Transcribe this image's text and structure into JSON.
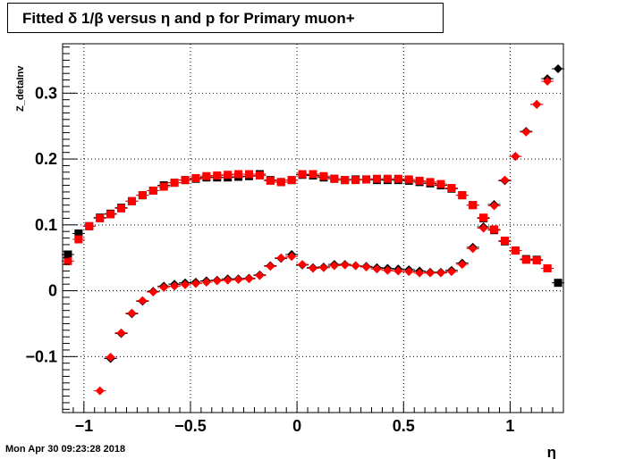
{
  "title": "Fitted δ 1/β versus η and p for Primary muon+",
  "footer_timestamp": "Mon Apr 30 09:23:28 2018",
  "chart_data": {
    "type": "scatter",
    "xlabel": "η",
    "ylabel": "Z_detaInv",
    "xlim": [
      -1.1,
      1.25
    ],
    "ylim": [
      -0.185,
      0.375
    ],
    "x_ticks": [
      -1,
      -0.5,
      0,
      0.5,
      1
    ],
    "x_tick_labels": [
      "−1",
      "−0.5",
      "0",
      "0.5",
      "1"
    ],
    "y_ticks": [
      -0.1,
      0,
      0.1,
      0.2,
      0.3
    ],
    "y_tick_labels": [
      "−0.1",
      "0",
      "0.1",
      "0.2",
      "0.3"
    ],
    "grid": true,
    "series": [
      {
        "color": "#000000",
        "marker": "square",
        "points": [
          [
            -1.075,
            0.055
          ],
          [
            -1.025,
            0.087
          ],
          [
            -0.975,
            0.098
          ],
          [
            -0.925,
            0.111
          ],
          [
            -0.875,
            0.117
          ],
          [
            -0.825,
            0.126
          ],
          [
            -0.775,
            0.136
          ],
          [
            -0.725,
            0.145
          ],
          [
            -0.675,
            0.152
          ],
          [
            -0.625,
            0.16
          ],
          [
            -0.575,
            0.164
          ],
          [
            -0.525,
            0.168
          ],
          [
            -0.475,
            0.17
          ],
          [
            -0.425,
            0.172
          ],
          [
            -0.375,
            0.172
          ],
          [
            -0.325,
            0.172
          ],
          [
            -0.275,
            0.173
          ],
          [
            -0.225,
            0.174
          ],
          [
            -0.175,
            0.177
          ],
          [
            -0.125,
            0.168
          ],
          [
            -0.075,
            0.165
          ],
          [
            -0.025,
            0.168
          ],
          [
            0.025,
            0.176
          ],
          [
            0.075,
            0.175
          ],
          [
            0.125,
            0.172
          ],
          [
            0.175,
            0.17
          ],
          [
            0.225,
            0.168
          ],
          [
            0.275,
            0.169
          ],
          [
            0.325,
            0.169
          ],
          [
            0.375,
            0.168
          ],
          [
            0.425,
            0.168
          ],
          [
            0.475,
            0.168
          ],
          [
            0.525,
            0.167
          ],
          [
            0.575,
            0.165
          ],
          [
            0.625,
            0.163
          ],
          [
            0.675,
            0.16
          ],
          [
            0.725,
            0.155
          ],
          [
            0.775,
            0.145
          ],
          [
            0.825,
            0.13
          ],
          [
            0.875,
            0.11
          ],
          [
            0.925,
            0.092
          ],
          [
            0.975,
            0.075
          ],
          [
            1.025,
            0.061
          ],
          [
            1.075,
            0.048
          ],
          [
            1.125,
            0.047
          ],
          [
            1.175,
            0.034
          ],
          [
            1.225,
            0.012
          ]
        ]
      },
      {
        "color": "#000000",
        "marker": "diamond",
        "points": [
          [
            -0.875,
            -0.103
          ],
          [
            -0.825,
            -0.065
          ],
          [
            -0.775,
            -0.035
          ],
          [
            -0.725,
            -0.016
          ],
          [
            -0.675,
            -0.001
          ],
          [
            -0.625,
            0.007
          ],
          [
            -0.575,
            0.01
          ],
          [
            -0.525,
            0.012
          ],
          [
            -0.475,
            0.013
          ],
          [
            -0.425,
            0.015
          ],
          [
            -0.375,
            0.016
          ],
          [
            -0.325,
            0.018
          ],
          [
            -0.275,
            0.018
          ],
          [
            -0.225,
            0.019
          ],
          [
            -0.175,
            0.024
          ],
          [
            -0.125,
            0.038
          ],
          [
            -0.075,
            0.049
          ],
          [
            -0.025,
            0.055
          ],
          [
            0.025,
            0.039
          ],
          [
            0.075,
            0.035
          ],
          [
            0.125,
            0.036
          ],
          [
            0.175,
            0.04
          ],
          [
            0.225,
            0.04
          ],
          [
            0.275,
            0.038
          ],
          [
            0.325,
            0.037
          ],
          [
            0.375,
            0.035
          ],
          [
            0.425,
            0.034
          ],
          [
            0.475,
            0.033
          ],
          [
            0.525,
            0.032
          ],
          [
            0.575,
            0.03
          ],
          [
            0.625,
            0.028
          ],
          [
            0.675,
            0.028
          ],
          [
            0.725,
            0.031
          ],
          [
            0.775,
            0.042
          ],
          [
            0.825,
            0.066
          ],
          [
            0.875,
            0.097
          ],
          [
            0.925,
            0.131
          ],
          [
            0.975,
            0.167
          ],
          [
            1.025,
            0.204
          ],
          [
            1.075,
            0.242
          ],
          [
            1.125,
            0.283
          ],
          [
            1.175,
            0.322
          ],
          [
            1.225,
            0.337
          ]
        ]
      },
      {
        "color": "#ff0000",
        "marker": "square",
        "points": [
          [
            -1.075,
            0.045
          ],
          [
            -1.025,
            0.078
          ],
          [
            -0.975,
            0.098
          ],
          [
            -0.925,
            0.11
          ],
          [
            -0.875,
            0.116
          ],
          [
            -0.825,
            0.125
          ],
          [
            -0.775,
            0.136
          ],
          [
            -0.725,
            0.145
          ],
          [
            -0.675,
            0.152
          ],
          [
            -0.625,
            0.158
          ],
          [
            -0.575,
            0.164
          ],
          [
            -0.525,
            0.168
          ],
          [
            -0.475,
            0.171
          ],
          [
            -0.425,
            0.174
          ],
          [
            -0.375,
            0.175
          ],
          [
            -0.325,
            0.176
          ],
          [
            -0.275,
            0.177
          ],
          [
            -0.225,
            0.177
          ],
          [
            -0.175,
            0.175
          ],
          [
            -0.125,
            0.167
          ],
          [
            -0.075,
            0.165
          ],
          [
            -0.025,
            0.168
          ],
          [
            0.025,
            0.177
          ],
          [
            0.075,
            0.177
          ],
          [
            0.125,
            0.174
          ],
          [
            0.175,
            0.17
          ],
          [
            0.225,
            0.168
          ],
          [
            0.275,
            0.168
          ],
          [
            0.325,
            0.169
          ],
          [
            0.375,
            0.17
          ],
          [
            0.425,
            0.17
          ],
          [
            0.475,
            0.17
          ],
          [
            0.525,
            0.169
          ],
          [
            0.575,
            0.167
          ],
          [
            0.625,
            0.165
          ],
          [
            0.675,
            0.162
          ],
          [
            0.725,
            0.156
          ],
          [
            0.775,
            0.145
          ],
          [
            0.825,
            0.13
          ],
          [
            0.875,
            0.111
          ],
          [
            0.925,
            0.093
          ],
          [
            0.975,
            0.076
          ],
          [
            1.025,
            0.061
          ],
          [
            1.075,
            0.047
          ],
          [
            1.125,
            0.046
          ],
          [
            1.175,
            0.034
          ]
        ]
      },
      {
        "color": "#ff0000",
        "marker": "diamond",
        "points": [
          [
            -0.925,
            -0.152
          ],
          [
            -0.875,
            -0.101
          ],
          [
            -0.825,
            -0.064
          ],
          [
            -0.775,
            -0.034
          ],
          [
            -0.725,
            -0.015
          ],
          [
            -0.675,
            -0.002
          ],
          [
            -0.625,
            0.005
          ],
          [
            -0.575,
            0.007
          ],
          [
            -0.525,
            0.009
          ],
          [
            -0.475,
            0.011
          ],
          [
            -0.425,
            0.013
          ],
          [
            -0.375,
            0.015
          ],
          [
            -0.325,
            0.016
          ],
          [
            -0.275,
            0.017
          ],
          [
            -0.225,
            0.018
          ],
          [
            -0.175,
            0.023
          ],
          [
            -0.125,
            0.037
          ],
          [
            -0.075,
            0.05
          ],
          [
            -0.025,
            0.052
          ],
          [
            0.025,
            0.04
          ],
          [
            0.075,
            0.034
          ],
          [
            0.125,
            0.035
          ],
          [
            0.175,
            0.038
          ],
          [
            0.225,
            0.039
          ],
          [
            0.275,
            0.038
          ],
          [
            0.325,
            0.036
          ],
          [
            0.375,
            0.033
          ],
          [
            0.425,
            0.031
          ],
          [
            0.475,
            0.03
          ],
          [
            0.525,
            0.029
          ],
          [
            0.575,
            0.027
          ],
          [
            0.625,
            0.027
          ],
          [
            0.675,
            0.027
          ],
          [
            0.725,
            0.029
          ],
          [
            0.775,
            0.04
          ],
          [
            0.825,
            0.064
          ],
          [
            0.875,
            0.095
          ],
          [
            0.925,
            0.129
          ],
          [
            0.975,
            0.168
          ],
          [
            1.025,
            0.204
          ],
          [
            1.075,
            0.241
          ],
          [
            1.125,
            0.283
          ],
          [
            1.175,
            0.318
          ]
        ]
      }
    ]
  }
}
